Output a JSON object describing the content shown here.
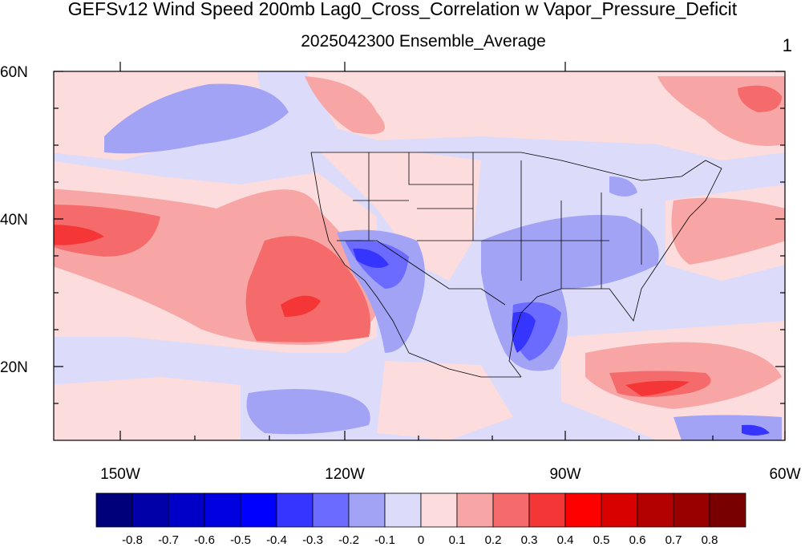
{
  "title": "GEFSv12 Wind Speed 200mb Lag0_Cross_Correlation w Vapor_Pressure_Deficit",
  "subtitle": "2025042300 Ensemble_Average",
  "panel_number": "1",
  "map": {
    "lat_labels": [
      "60N",
      "40N",
      "20N"
    ],
    "lon_labels": [
      "150W",
      "120W",
      "90W",
      "60W"
    ],
    "lat_range": [
      10,
      60
    ],
    "lon_range": [
      -160,
      -60
    ],
    "field": "correlation (-1 to 1)",
    "features": [
      "coastlines",
      "US state boundaries",
      "national boundaries"
    ]
  },
  "colorbar": {
    "labels": [
      "-0.8",
      "-0.7",
      "-0.6",
      "-0.5",
      "-0.4",
      "-0.3",
      "-0.2",
      "-0.1",
      "0",
      "0.1",
      "0.2",
      "0.3",
      "0.4",
      "0.5",
      "0.6",
      "0.7",
      "0.8"
    ],
    "colors": [
      "#00007a",
      "#0000a8",
      "#0000c8",
      "#0000e0",
      "#0000ff",
      "#3535ff",
      "#6b6bff",
      "#a3a3f6",
      "#dcdcfa",
      "#fcdcdc",
      "#f7a5a5",
      "#f56b6b",
      "#f53636",
      "#ff0000",
      "#d90000",
      "#b30000",
      "#980000",
      "#780000"
    ]
  }
}
